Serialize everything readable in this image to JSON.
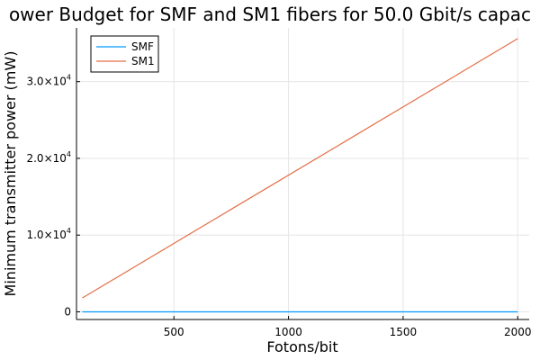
{
  "chart_data": {
    "type": "line",
    "title": "ower Budget for SMF and SM1 fibers for 50.0 Gbit/s capac",
    "xlabel": "Fotons/bit",
    "ylabel": "Minimum transmitter power (mW)",
    "xlim": [
      75,
      2050
    ],
    "ylim": [
      -1000,
      37000
    ],
    "x_ticks": [
      500,
      1000,
      1500,
      2000
    ],
    "y_ticks": [
      {
        "value": 0,
        "mantissa": "0",
        "exponent": ""
      },
      {
        "value": 10000,
        "mantissa": "1.0×10",
        "exponent": "4"
      },
      {
        "value": 20000,
        "mantissa": "2.0×10",
        "exponent": "4"
      },
      {
        "value": 30000,
        "mantissa": "3.0×10",
        "exponent": "4"
      }
    ],
    "grid": true,
    "legend_position": "top-left",
    "series": [
      {
        "name": "SMF",
        "color": "#009AFA",
        "x": [
          100,
          2000
        ],
        "y": [
          0,
          0
        ]
      },
      {
        "name": "SM1",
        "color": "#E36F47",
        "x": [
          100,
          2000
        ],
        "y": [
          1800,
          35600
        ]
      }
    ]
  }
}
